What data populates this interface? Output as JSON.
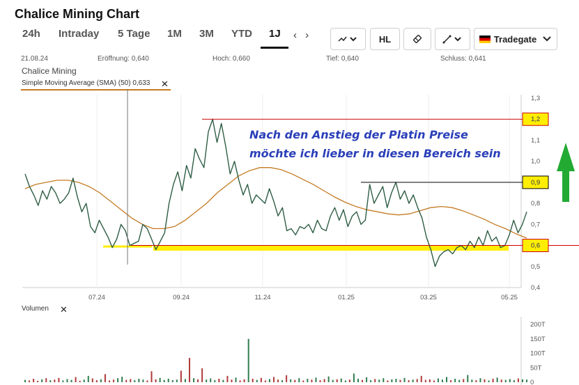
{
  "header": {
    "title": "Chalice Mining Chart"
  },
  "tabs": [
    {
      "label": "24h"
    },
    {
      "label": "Intraday"
    },
    {
      "label": "5 Tage"
    },
    {
      "label": "1M"
    },
    {
      "label": "3M"
    },
    {
      "label": "YTD"
    },
    {
      "label": "1J"
    }
  ],
  "active_tab": "1J",
  "nav_arrows": "‹ ›",
  "toolbar": {
    "chart_type_icon": "line-chart-icon",
    "hl_label": "HL",
    "draw_icon": "eraser-icon",
    "draw_tools_icon": "pencil-line-icon",
    "exchange_label": "Tradegate"
  },
  "quote_info": {
    "date": "21.08.24",
    "open": "Eröffnung: 0,640",
    "high": "Hoch: 0,660",
    "low": "Tief: 0,640",
    "close": "Schluss: 0,641"
  },
  "instrument": "Chalice Mining",
  "indicator": {
    "label": "Simple Moving Average (SMA) (50) 0,633",
    "close_symbol": "✕",
    "color": "#c47a22"
  },
  "volume": {
    "label": "Volumen",
    "close_symbol": "✕"
  },
  "colors": {
    "price_line": "#2e5d44",
    "sma": "#c47a22",
    "annotation_red": "#cc0000",
    "highlight_yellow": "#ffee00",
    "annotation_text": "#2a3fb8",
    "arrow_green": "#22aa33"
  },
  "chart_data": {
    "type": "line",
    "y_axis": {
      "ylim": [
        0.4,
        1.3
      ],
      "ticks": [
        "1,3",
        "1,2",
        "1,1",
        "1,0",
        "0,9",
        "0,8",
        "0,7",
        "0,6",
        "0,5",
        "0,4"
      ]
    },
    "x_axis": {
      "tick_labels": [
        "07.24",
        "09.24",
        "11.24",
        "01.25",
        "03.25",
        "05.25"
      ]
    },
    "series": [
      {
        "key": "price",
        "values": [
          0.94,
          0.88,
          0.84,
          0.79,
          0.86,
          0.82,
          0.88,
          0.85,
          0.8,
          0.82,
          0.85,
          0.92,
          0.83,
          0.76,
          0.8,
          0.69,
          0.66,
          0.72,
          0.68,
          0.64,
          0.59,
          0.63,
          0.7,
          0.67,
          0.6,
          0.61,
          0.62,
          0.7,
          0.68,
          0.63,
          0.58,
          0.62,
          0.66,
          0.8,
          0.89,
          0.95,
          0.86,
          0.98,
          0.92,
          1.06,
          1.01,
          0.97,
          1.14,
          1.2,
          1.09,
          1.18,
          1.07,
          0.94,
          1.0,
          0.91,
          0.84,
          0.89,
          0.8,
          0.84,
          0.82,
          0.8,
          0.87,
          0.81,
          0.74,
          0.78,
          0.67,
          0.68,
          0.65,
          0.69,
          0.68,
          0.7,
          0.66,
          0.72,
          0.68,
          0.67,
          0.74,
          0.78,
          0.72,
          0.77,
          0.69,
          0.74,
          0.76,
          0.7,
          0.72,
          0.89,
          0.8,
          0.84,
          0.88,
          0.78,
          0.85,
          0.9,
          0.82,
          0.86,
          0.8,
          0.84,
          0.78,
          0.73,
          0.64,
          0.58,
          0.5,
          0.55,
          0.57,
          0.58,
          0.56,
          0.59,
          0.6,
          0.58,
          0.62,
          0.59,
          0.64,
          0.6,
          0.67,
          0.62,
          0.64,
          0.59,
          0.6,
          0.65,
          0.72,
          0.66,
          0.7,
          0.76
        ]
      },
      {
        "key": "sma",
        "values": [
          0.87,
          0.89,
          0.9,
          0.91,
          0.91,
          0.9,
          0.88,
          0.85,
          0.81,
          0.77,
          0.73,
          0.7,
          0.68,
          0.68,
          0.69,
          0.72,
          0.76,
          0.8,
          0.85,
          0.89,
          0.93,
          0.955,
          0.97,
          0.97,
          0.96,
          0.94,
          0.915,
          0.89,
          0.86,
          0.83,
          0.805,
          0.785,
          0.77,
          0.76,
          0.75,
          0.745,
          0.75,
          0.765,
          0.78,
          0.785,
          0.78,
          0.765,
          0.745,
          0.725,
          0.7,
          0.68,
          0.655,
          0.635
        ]
      }
    ],
    "volume": {
      "axis_ticks": [
        "200T",
        "150T",
        "100T",
        "50T",
        "0"
      ],
      "ylim": [
        0,
        200
      ],
      "values": [
        8,
        6,
        12,
        5,
        10,
        14,
        7,
        9,
        15,
        6,
        11,
        8,
        18,
        5,
        9,
        22,
        13,
        7,
        10,
        28,
        6,
        9,
        14,
        19,
        8,
        11,
        7,
        12,
        9,
        6,
        38,
        10,
        15,
        8,
        12,
        7,
        9,
        40,
        11,
        84,
        14,
        10,
        48,
        9,
        13,
        7,
        12,
        8,
        22,
        9,
        16,
        6,
        10,
        150,
        12,
        8,
        15,
        6,
        11,
        18,
        9,
        7,
        24,
        10,
        8,
        14,
        6,
        12,
        9,
        16,
        7,
        11,
        20,
        8,
        10,
        13,
        6,
        9,
        30,
        12,
        8,
        17,
        7,
        11,
        9,
        14,
        6,
        10,
        12,
        8,
        15,
        7,
        9,
        11,
        22,
        8,
        10,
        6,
        13,
        9,
        18,
        7,
        12,
        8,
        11,
        25,
        9,
        7,
        14,
        10,
        6,
        12,
        16,
        9,
        8,
        11,
        7,
        13,
        10,
        9
      ]
    },
    "annotations": {
      "text_line1": "Nach den Anstieg der Platin Preise",
      "text_line2": "möchte ich lieber in diesen Bereich  sein",
      "levels": [
        {
          "label": "1,2",
          "value": 1.2,
          "color": "#cc0000"
        },
        {
          "label": "0,9",
          "value": 0.9,
          "color": "#000000"
        },
        {
          "label": "0,6",
          "value": 0.6,
          "color": "#cc0000"
        }
      ],
      "zone": {
        "y_from": 0.575,
        "y_to": 0.6
      }
    }
  }
}
